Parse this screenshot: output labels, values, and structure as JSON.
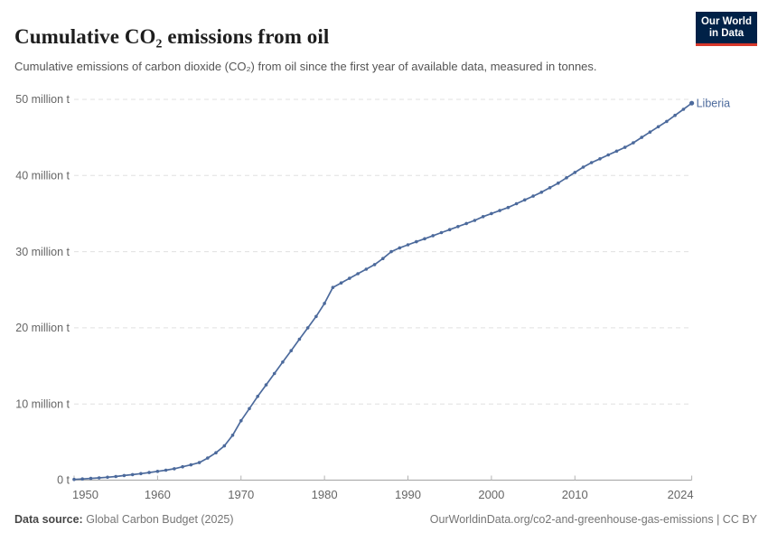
{
  "header": {
    "logo": {
      "line1": "Our World",
      "line2": "in Data",
      "bg_color": "#002147",
      "accent_color": "#D7382B"
    }
  },
  "chart_data": {
    "type": "line",
    "title": "Cumulative CO₂ emissions from oil",
    "subtitle": "Cumulative emissions of carbon dioxide (CO₂) from oil since the first year of available data, measured in tonnes.",
    "entity": "Liberia",
    "unit": "million t",
    "line_color": "#4C6A9C",
    "xlim": [
      1950,
      2024
    ],
    "ylim": [
      0,
      50
    ],
    "grid": "dashed-horizontal",
    "legend_position": "end-of-line-label",
    "x_ticks": [
      1950,
      1960,
      1970,
      1980,
      1990,
      2000,
      2010,
      2024
    ],
    "y_ticks": [
      {
        "value": 0,
        "label": "0 t"
      },
      {
        "value": 10,
        "label": "10 million t"
      },
      {
        "value": 20,
        "label": "20 million t"
      },
      {
        "value": 30,
        "label": "30 million t"
      },
      {
        "value": 40,
        "label": "40 million t"
      },
      {
        "value": 50,
        "label": "50 million t"
      }
    ],
    "years": [
      1950,
      1951,
      1952,
      1953,
      1954,
      1955,
      1956,
      1957,
      1958,
      1959,
      1960,
      1961,
      1962,
      1963,
      1964,
      1965,
      1966,
      1967,
      1968,
      1969,
      1970,
      1971,
      1972,
      1973,
      1974,
      1975,
      1976,
      1977,
      1978,
      1979,
      1980,
      1981,
      1982,
      1983,
      1984,
      1985,
      1986,
      1987,
      1988,
      1989,
      1990,
      1991,
      1992,
      1993,
      1994,
      1995,
      1996,
      1997,
      1998,
      1999,
      2000,
      2001,
      2002,
      2003,
      2004,
      2005,
      2006,
      2007,
      2008,
      2009,
      2010,
      2011,
      2012,
      2013,
      2014,
      2015,
      2016,
      2017,
      2018,
      2019,
      2020,
      2021,
      2022,
      2023,
      2024
    ],
    "series": [
      {
        "name": "Liberia",
        "values": [
          0.1,
          0.16,
          0.22,
          0.3,
          0.38,
          0.48,
          0.6,
          0.72,
          0.85,
          1.0,
          1.15,
          1.3,
          1.5,
          1.75,
          2.0,
          2.3,
          2.9,
          3.6,
          4.5,
          5.9,
          7.8,
          9.4,
          11.0,
          12.5,
          14.0,
          15.5,
          17.0,
          18.5,
          20.0,
          21.5,
          23.2,
          25.3,
          25.9,
          26.5,
          27.1,
          27.7,
          28.3,
          29.1,
          30.0,
          30.5,
          30.9,
          31.3,
          31.7,
          32.1,
          32.5,
          32.9,
          33.3,
          33.7,
          34.1,
          34.6,
          35.0,
          35.4,
          35.8,
          36.3,
          36.8,
          37.3,
          37.8,
          38.4,
          39.0,
          39.7,
          40.4,
          41.1,
          41.7,
          42.2,
          42.7,
          43.2,
          43.7,
          44.3,
          45.0,
          45.7,
          46.4,
          47.1,
          47.9,
          48.7,
          49.5
        ]
      }
    ]
  },
  "footer": {
    "datasource_label": "Data source:",
    "datasource_value": "Global Carbon Budget (2025)",
    "right_text": "OurWorldinData.org/co2-and-greenhouse-gas-emissions | CC BY"
  }
}
